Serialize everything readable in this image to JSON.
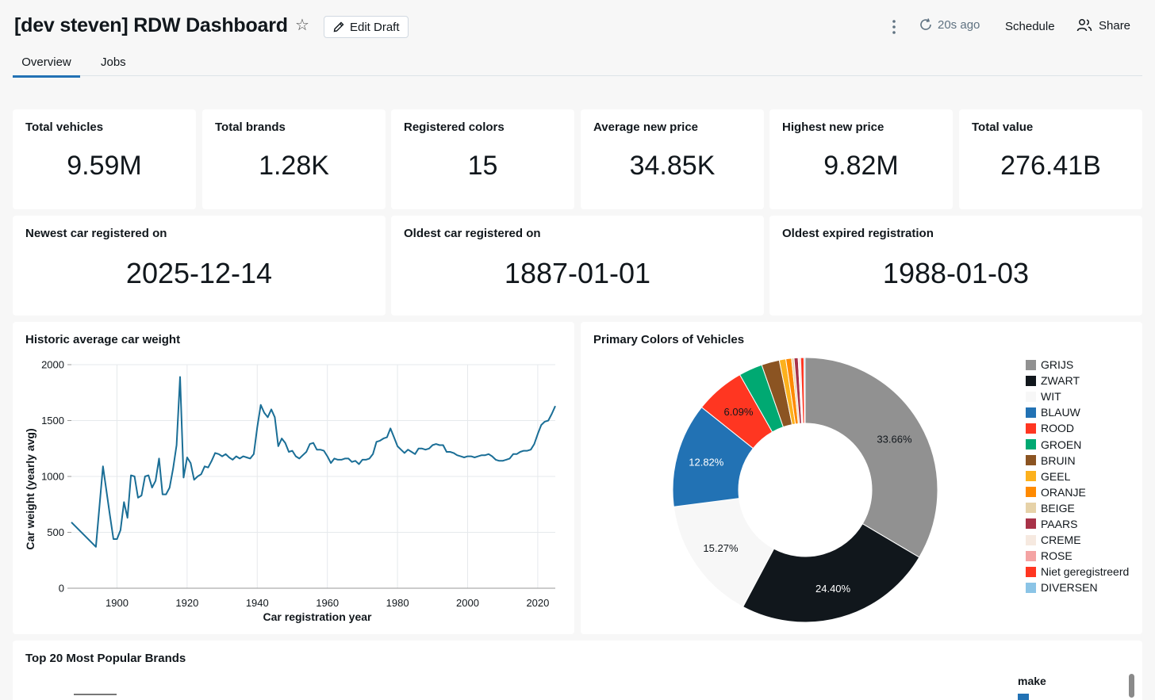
{
  "header": {
    "title": "[dev steven] RDW Dashboard",
    "edit_label": "Edit Draft",
    "refresh_label": "20s ago",
    "schedule_label": "Schedule",
    "share_label": "Share"
  },
  "tabs": [
    {
      "label": "Overview",
      "active": true
    },
    {
      "label": "Jobs",
      "active": false
    }
  ],
  "kpis": [
    {
      "title": "Total vehicles",
      "value": "9.59M"
    },
    {
      "title": "Total brands",
      "value": "1.28K"
    },
    {
      "title": "Registered colors",
      "value": "15"
    },
    {
      "title": "Average new price",
      "value": "34.85K"
    },
    {
      "title": "Highest new price",
      "value": "9.82M"
    },
    {
      "title": "Total value",
      "value": "276.41B"
    }
  ],
  "dates": [
    {
      "title": "Newest car registered on",
      "value": "2025-12-14"
    },
    {
      "title": "Oldest car registered on",
      "value": "1887-01-01"
    },
    {
      "title": "Oldest expired registration",
      "value": "1988-01-03"
    }
  ],
  "chart_data": [
    {
      "type": "line",
      "title": "Historic average car weight",
      "xlabel": "Car registration year",
      "ylabel": "Car weight (yearly avg)",
      "xlim": [
        1887,
        2025
      ],
      "ylim": [
        0,
        2000
      ],
      "xticks": [
        1900,
        1920,
        1940,
        1960,
        1980,
        2000,
        2020
      ],
      "yticks": [
        0,
        500,
        1000,
        1500,
        2000
      ],
      "color": "#1a6e96",
      "x": [
        1887,
        1894,
        1896,
        1898,
        1899,
        1900,
        1901,
        1902,
        1903,
        1904,
        1905,
        1906,
        1907,
        1908,
        1909,
        1910,
        1911,
        1912,
        1913,
        1914,
        1915,
        1916,
        1917,
        1918,
        1919,
        1920,
        1921,
        1922,
        1923,
        1924,
        1925,
        1926,
        1927,
        1928,
        1929,
        1930,
        1931,
        1932,
        1933,
        1934,
        1935,
        1936,
        1937,
        1938,
        1939,
        1940,
        1941,
        1942,
        1943,
        1944,
        1945,
        1946,
        1947,
        1948,
        1949,
        1950,
        1951,
        1952,
        1953,
        1954,
        1955,
        1956,
        1957,
        1958,
        1959,
        1960,
        1961,
        1962,
        1963,
        1964,
        1965,
        1966,
        1967,
        1968,
        1969,
        1970,
        1971,
        1972,
        1973,
        1974,
        1975,
        1976,
        1977,
        1978,
        1979,
        1980,
        1981,
        1982,
        1983,
        1984,
        1985,
        1986,
        1987,
        1988,
        1989,
        1990,
        1991,
        1992,
        1993,
        1994,
        1995,
        1996,
        1997,
        1998,
        1999,
        2000,
        2001,
        2002,
        2003,
        2004,
        2005,
        2006,
        2007,
        2008,
        2009,
        2010,
        2011,
        2012,
        2013,
        2014,
        2015,
        2016,
        2017,
        2018,
        2019,
        2020,
        2021,
        2022,
        2023,
        2024,
        2025
      ],
      "y": [
        590,
        370,
        1090,
        650,
        440,
        440,
        520,
        770,
        630,
        1010,
        1000,
        810,
        830,
        1000,
        1010,
        900,
        960,
        1160,
        840,
        840,
        900,
        1070,
        1280,
        1890,
        990,
        1170,
        1120,
        970,
        1000,
        1020,
        1090,
        1080,
        1140,
        1210,
        1200,
        1180,
        1200,
        1170,
        1150,
        1180,
        1160,
        1180,
        1170,
        1160,
        1200,
        1440,
        1640,
        1570,
        1530,
        1600,
        1530,
        1270,
        1340,
        1300,
        1220,
        1230,
        1180,
        1160,
        1190,
        1220,
        1290,
        1300,
        1240,
        1240,
        1230,
        1180,
        1120,
        1160,
        1150,
        1150,
        1160,
        1160,
        1130,
        1140,
        1110,
        1150,
        1150,
        1160,
        1200,
        1310,
        1320,
        1340,
        1350,
        1430,
        1350,
        1270,
        1240,
        1210,
        1240,
        1220,
        1200,
        1250,
        1250,
        1240,
        1250,
        1280,
        1290,
        1280,
        1280,
        1220,
        1220,
        1210,
        1190,
        1180,
        1170,
        1180,
        1180,
        1170,
        1180,
        1190,
        1190,
        1200,
        1180,
        1150,
        1140,
        1140,
        1150,
        1160,
        1200,
        1200,
        1220,
        1230,
        1230,
        1240,
        1290,
        1380,
        1460,
        1490,
        1500,
        1560,
        1630
      ]
    },
    {
      "type": "pie",
      "title": "Primary Colors of Vehicles",
      "donut": true,
      "categories": [
        "GRIJS",
        "ZWART",
        "WIT",
        "BLAUW",
        "ROOD",
        "GROEN",
        "BRUIN",
        "GEEL",
        "ORANJE",
        "BEIGE",
        "PAARS",
        "CREME",
        "ROSE",
        "Niet geregistreerd",
        "DIVERSEN"
      ],
      "values": [
        33.66,
        24.4,
        15.27,
        12.82,
        6.09,
        2.9,
        2.2,
        0.8,
        0.7,
        0.3,
        0.5,
        0.15,
        0.15,
        0.4,
        0.15
      ],
      "labels": [
        "33.66%",
        "24.40%",
        "15.27%",
        "12.82%",
        "6.09%"
      ],
      "colors": [
        "#919191",
        "#11171c",
        "#f7f7f7",
        "#2272b4",
        "#ff3621",
        "#00a972",
        "#8b5422",
        "#fcb11d",
        "#ff8a00",
        "#e6d2a8",
        "#a83248",
        "#f6e9e0",
        "#f4a3a3",
        "#ff3621",
        "#8bc4e6"
      ]
    }
  ],
  "brands_card": {
    "title": "Top 20 Most Popular Brands",
    "legend_title": "make"
  }
}
